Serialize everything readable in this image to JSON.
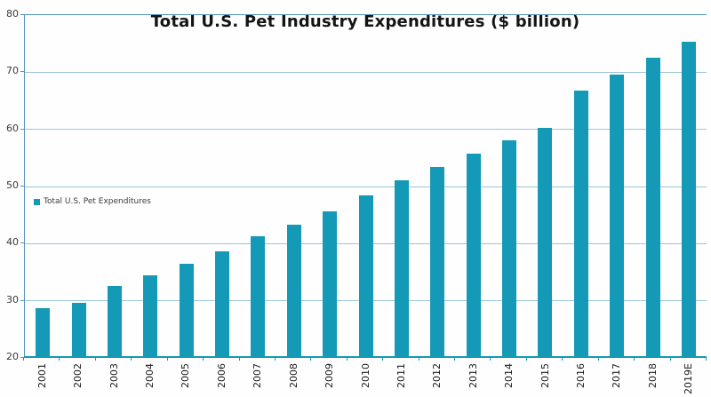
{
  "title": "Total U.S. Pet Industry Expenditures ($ billion)",
  "legend": {
    "label": "Total U.S. Pet Expenditures"
  },
  "colors": {
    "bar": "#1499B6",
    "gridline": "#9AC6DA",
    "plot_border": "#5596BC",
    "axis_line": "#1499B6",
    "tick_label_text": "#3A3A3A",
    "title_text": "#141414"
  },
  "chart_data": {
    "type": "bar",
    "title": "Total U.S. Pet Industry Expenditures ($ billion)",
    "series_name": "Total U.S. Pet Expenditures",
    "categories": [
      "2001",
      "2002",
      "2003",
      "2004",
      "2005",
      "2006",
      "2007",
      "2008",
      "2009",
      "2010",
      "2011",
      "2012",
      "2013",
      "2014",
      "2015",
      "2016",
      "2017",
      "2018",
      "2019E"
    ],
    "values": [
      28.5,
      29.5,
      32.4,
      34.4,
      36.3,
      38.5,
      41.2,
      43.2,
      45.5,
      48.35,
      50.96,
      53.33,
      55.72,
      58.04,
      60.28,
      66.75,
      69.51,
      72.56,
      75.38
    ],
    "xlabel": "",
    "ylabel": "",
    "ylim": [
      20,
      80
    ],
    "y_ticks": [
      20,
      30,
      40,
      50,
      60,
      70,
      80
    ],
    "grid": "horizontal",
    "legend_position": "middle-left",
    "x_tick_rotation": 90
  }
}
